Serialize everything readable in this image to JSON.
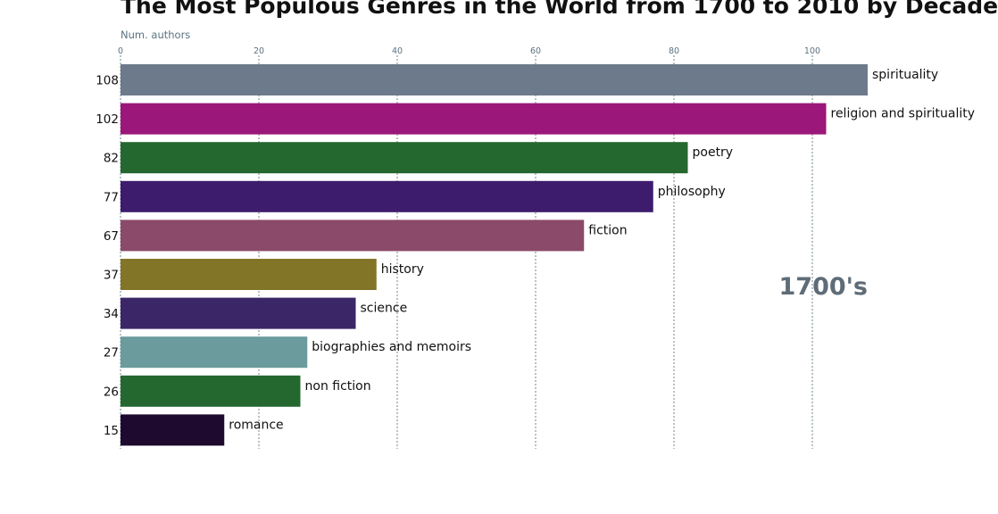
{
  "chart_data": {
    "type": "bar",
    "orientation": "horizontal",
    "title": "The Most Populous Genres in the World from 1700 to 2010 by Decade",
    "xlabel": "Num. authors",
    "period_label": "1700's",
    "xlim": [
      0,
      108
    ],
    "xticks": [
      0,
      20,
      40,
      60,
      80,
      100
    ],
    "grid": true,
    "categories": [
      "spirituality",
      "religion and spirituality",
      "poetry",
      "philosophy",
      "fiction",
      "history",
      "science",
      "biographies and memoirs",
      "non fiction",
      "romance"
    ],
    "values": [
      108,
      102,
      82,
      77,
      67,
      37,
      34,
      27,
      26,
      15
    ],
    "colors": [
      "#6d7a8b",
      "#9b1779",
      "#24682f",
      "#3d1c6d",
      "#8b4a69",
      "#827528",
      "#3b2768",
      "#6b9b9c",
      "#24682f",
      "#1d0a2e"
    ]
  }
}
